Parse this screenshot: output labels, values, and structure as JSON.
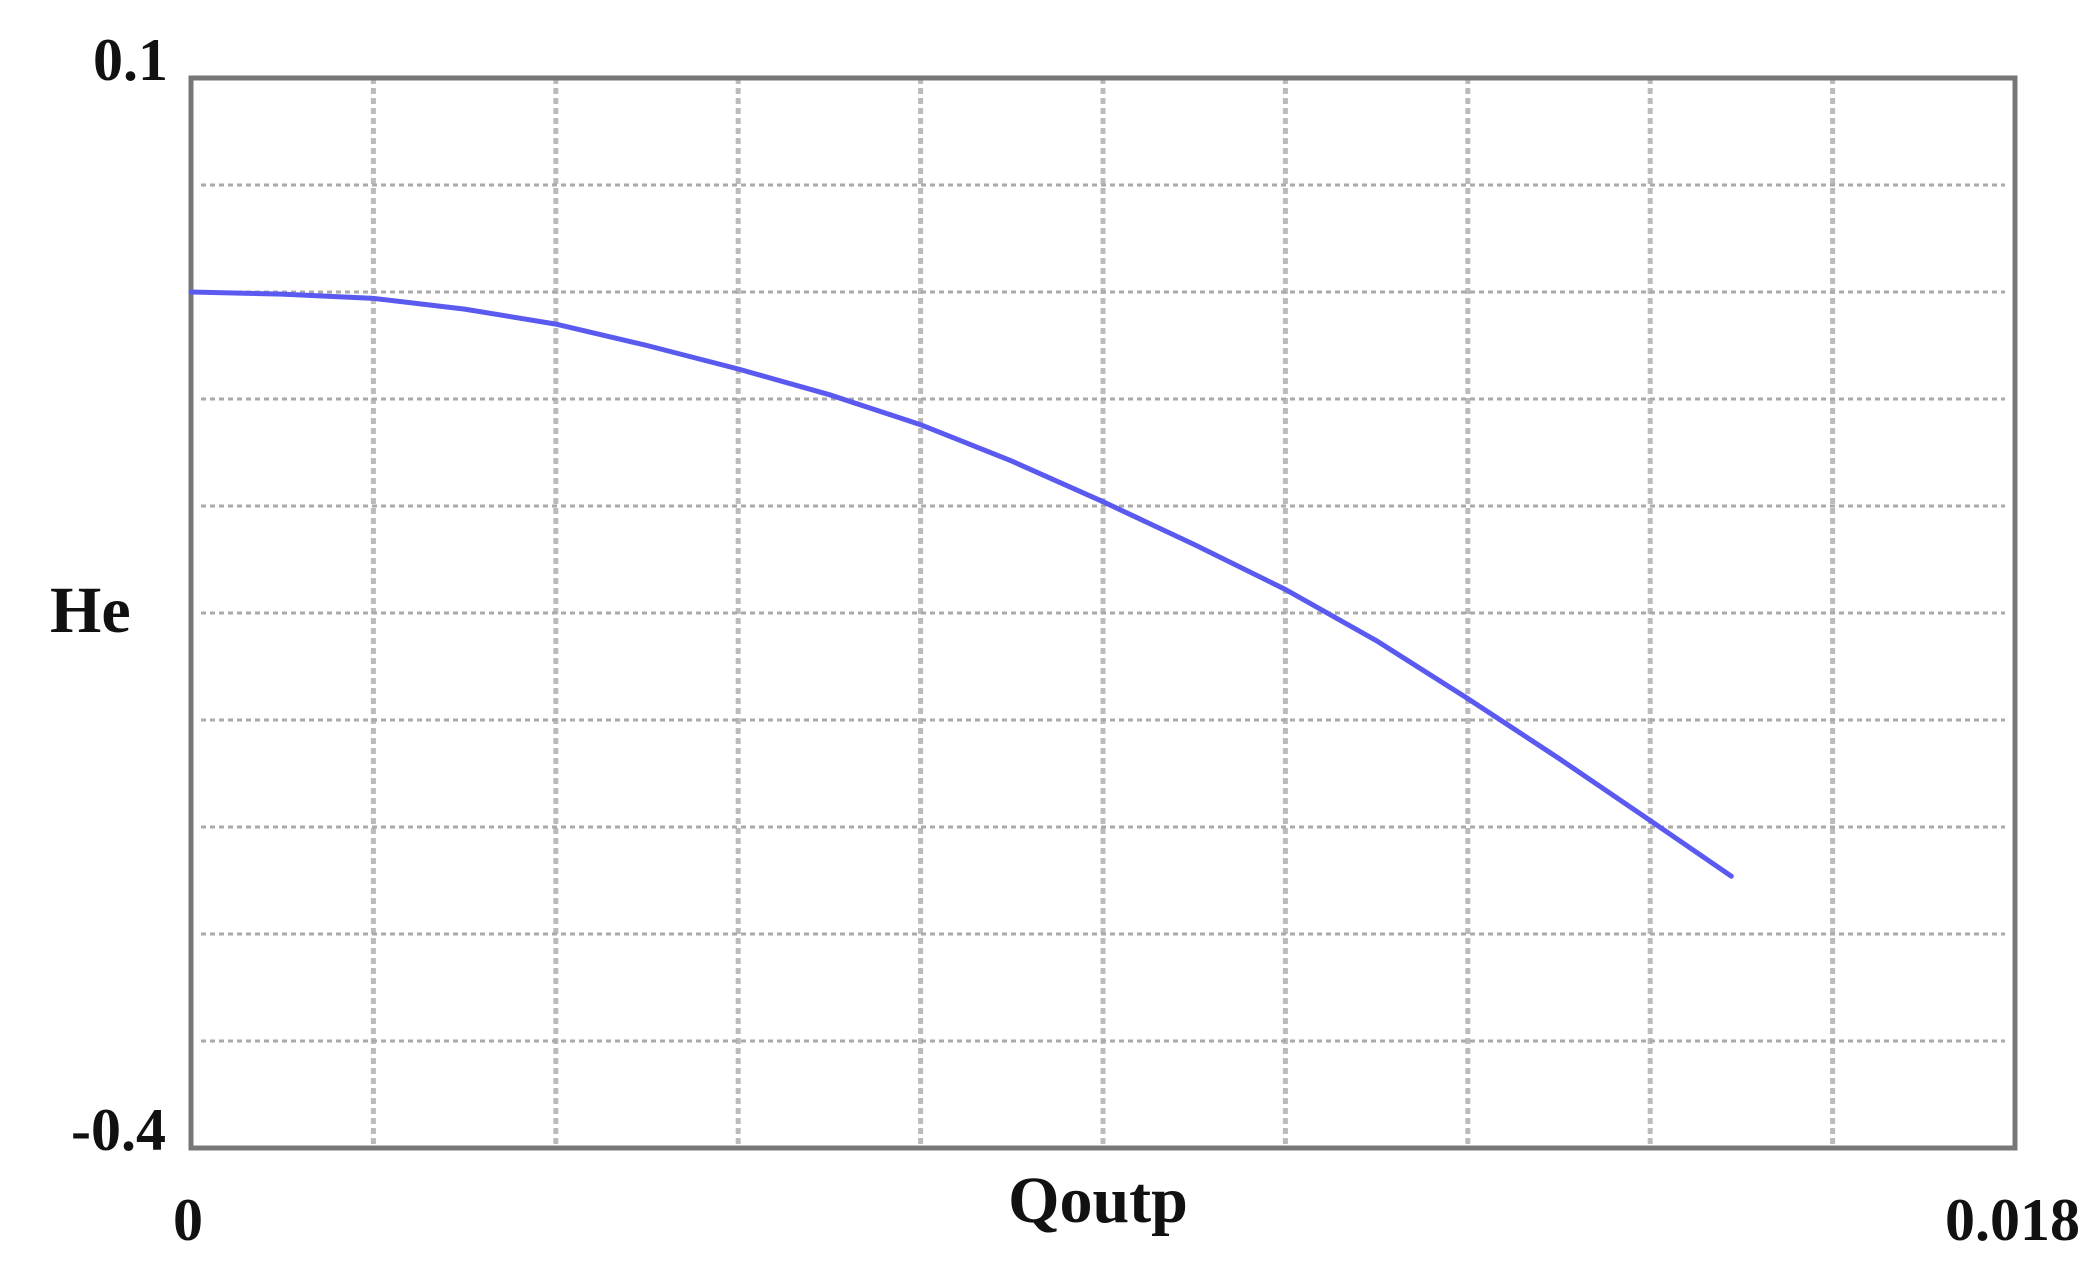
{
  "chart_data": {
    "type": "line",
    "title": "",
    "xlabel": "Qoutp",
    "ylabel": "He",
    "xlim": [
      0,
      0.018
    ],
    "ylim": [
      -0.4,
      0.1
    ],
    "x_tick_labels": [
      "0",
      "0.018"
    ],
    "y_tick_labels": [
      "0.1",
      "-0.4"
    ],
    "grid": true,
    "grid_divisions": {
      "x": 10,
      "y": 10
    },
    "line_color": "#5a5af0",
    "series": [
      {
        "x": [
          0,
          0.0009,
          0.0018,
          0.0027,
          0.0036,
          0.0045,
          0.0054,
          0.0063,
          0.0072,
          0.0081,
          0.009,
          0.0099,
          0.0108,
          0.0117,
          0.0126,
          0.0135,
          0.0144,
          0.0152
        ],
        "y": [
          0.0,
          -0.001,
          -0.003,
          -0.008,
          -0.015,
          -0.025,
          -0.036,
          -0.048,
          -0.062,
          -0.079,
          -0.098,
          -0.118,
          -0.139,
          -0.163,
          -0.19,
          -0.218,
          -0.247,
          -0.273
        ]
      }
    ]
  }
}
